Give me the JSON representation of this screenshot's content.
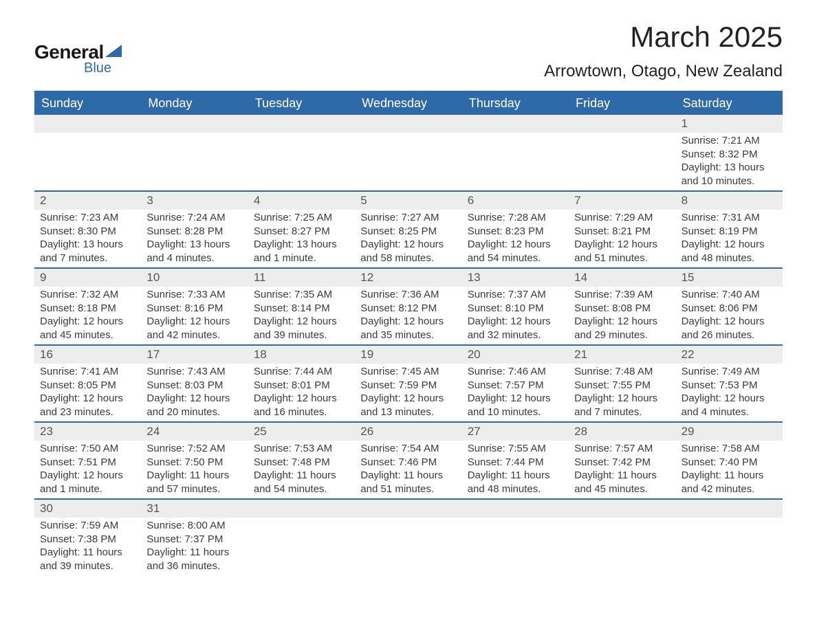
{
  "logo": {
    "top": "General",
    "bottom": "Blue"
  },
  "title": "March 2025",
  "location": "Arrowtown, Otago, New Zealand",
  "colors": {
    "brand_blue": "#2f6aa8",
    "header_row_bg": "#2f6aa8",
    "header_row_text": "#ffffff",
    "daynum_bg": "#ededed",
    "page_bg": "#ffffff",
    "text": "#3a3a3a"
  },
  "days_of_week": [
    "Sunday",
    "Monday",
    "Tuesday",
    "Wednesday",
    "Thursday",
    "Friday",
    "Saturday"
  ],
  "weeks": [
    [
      null,
      null,
      null,
      null,
      null,
      null,
      {
        "n": "1",
        "sr": "7:21 AM",
        "ss": "8:32 PM",
        "dl": "13 hours and 10 minutes."
      }
    ],
    [
      {
        "n": "2",
        "sr": "7:23 AM",
        "ss": "8:30 PM",
        "dl": "13 hours and 7 minutes."
      },
      {
        "n": "3",
        "sr": "7:24 AM",
        "ss": "8:28 PM",
        "dl": "13 hours and 4 minutes."
      },
      {
        "n": "4",
        "sr": "7:25 AM",
        "ss": "8:27 PM",
        "dl": "13 hours and 1 minute."
      },
      {
        "n": "5",
        "sr": "7:27 AM",
        "ss": "8:25 PM",
        "dl": "12 hours and 58 minutes."
      },
      {
        "n": "6",
        "sr": "7:28 AM",
        "ss": "8:23 PM",
        "dl": "12 hours and 54 minutes."
      },
      {
        "n": "7",
        "sr": "7:29 AM",
        "ss": "8:21 PM",
        "dl": "12 hours and 51 minutes."
      },
      {
        "n": "8",
        "sr": "7:31 AM",
        "ss": "8:19 PM",
        "dl": "12 hours and 48 minutes."
      }
    ],
    [
      {
        "n": "9",
        "sr": "7:32 AM",
        "ss": "8:18 PM",
        "dl": "12 hours and 45 minutes."
      },
      {
        "n": "10",
        "sr": "7:33 AM",
        "ss": "8:16 PM",
        "dl": "12 hours and 42 minutes."
      },
      {
        "n": "11",
        "sr": "7:35 AM",
        "ss": "8:14 PM",
        "dl": "12 hours and 39 minutes."
      },
      {
        "n": "12",
        "sr": "7:36 AM",
        "ss": "8:12 PM",
        "dl": "12 hours and 35 minutes."
      },
      {
        "n": "13",
        "sr": "7:37 AM",
        "ss": "8:10 PM",
        "dl": "12 hours and 32 minutes."
      },
      {
        "n": "14",
        "sr": "7:39 AM",
        "ss": "8:08 PM",
        "dl": "12 hours and 29 minutes."
      },
      {
        "n": "15",
        "sr": "7:40 AM",
        "ss": "8:06 PM",
        "dl": "12 hours and 26 minutes."
      }
    ],
    [
      {
        "n": "16",
        "sr": "7:41 AM",
        "ss": "8:05 PM",
        "dl": "12 hours and 23 minutes."
      },
      {
        "n": "17",
        "sr": "7:43 AM",
        "ss": "8:03 PM",
        "dl": "12 hours and 20 minutes."
      },
      {
        "n": "18",
        "sr": "7:44 AM",
        "ss": "8:01 PM",
        "dl": "12 hours and 16 minutes."
      },
      {
        "n": "19",
        "sr": "7:45 AM",
        "ss": "7:59 PM",
        "dl": "12 hours and 13 minutes."
      },
      {
        "n": "20",
        "sr": "7:46 AM",
        "ss": "7:57 PM",
        "dl": "12 hours and 10 minutes."
      },
      {
        "n": "21",
        "sr": "7:48 AM",
        "ss": "7:55 PM",
        "dl": "12 hours and 7 minutes."
      },
      {
        "n": "22",
        "sr": "7:49 AM",
        "ss": "7:53 PM",
        "dl": "12 hours and 4 minutes."
      }
    ],
    [
      {
        "n": "23",
        "sr": "7:50 AM",
        "ss": "7:51 PM",
        "dl": "12 hours and 1 minute."
      },
      {
        "n": "24",
        "sr": "7:52 AM",
        "ss": "7:50 PM",
        "dl": "11 hours and 57 minutes."
      },
      {
        "n": "25",
        "sr": "7:53 AM",
        "ss": "7:48 PM",
        "dl": "11 hours and 54 minutes."
      },
      {
        "n": "26",
        "sr": "7:54 AM",
        "ss": "7:46 PM",
        "dl": "11 hours and 51 minutes."
      },
      {
        "n": "27",
        "sr": "7:55 AM",
        "ss": "7:44 PM",
        "dl": "11 hours and 48 minutes."
      },
      {
        "n": "28",
        "sr": "7:57 AM",
        "ss": "7:42 PM",
        "dl": "11 hours and 45 minutes."
      },
      {
        "n": "29",
        "sr": "7:58 AM",
        "ss": "7:40 PM",
        "dl": "11 hours and 42 minutes."
      }
    ],
    [
      {
        "n": "30",
        "sr": "7:59 AM",
        "ss": "7:38 PM",
        "dl": "11 hours and 39 minutes."
      },
      {
        "n": "31",
        "sr": "8:00 AM",
        "ss": "7:37 PM",
        "dl": "11 hours and 36 minutes."
      },
      null,
      null,
      null,
      null,
      null
    ]
  ],
  "labels": {
    "sunrise": "Sunrise: ",
    "sunset": "Sunset: ",
    "daylight": "Daylight: "
  }
}
